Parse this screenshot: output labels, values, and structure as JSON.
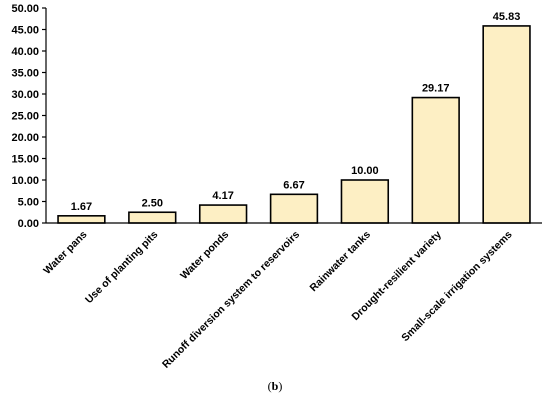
{
  "chart_data": {
    "type": "bar",
    "categories": [
      "Water pans",
      "Use of planting pits",
      "Water ponds",
      "Runoff diversion system to reservoirs",
      "Rainwater tanks",
      "Drought-resilient variety",
      "Small-scale irrigation systems"
    ],
    "values": [
      1.67,
      2.5,
      4.17,
      6.67,
      10.0,
      29.17,
      45.83
    ],
    "data_labels": [
      "1.67",
      "2.50",
      "4.17",
      "6.67",
      "10.00",
      "29.17",
      "45.83"
    ],
    "yticks": [
      "0.00",
      "5.00",
      "10.00",
      "15.00",
      "20.00",
      "25.00",
      "30.00",
      "35.00",
      "40.00",
      "45.00",
      "50.00"
    ],
    "ylim": [
      0,
      50
    ],
    "grid": false,
    "bar_color": "#fdefc4",
    "title": "",
    "xlabel": "",
    "ylabel": ""
  },
  "caption": {
    "open": "(",
    "letter": "b",
    "close": ")"
  }
}
